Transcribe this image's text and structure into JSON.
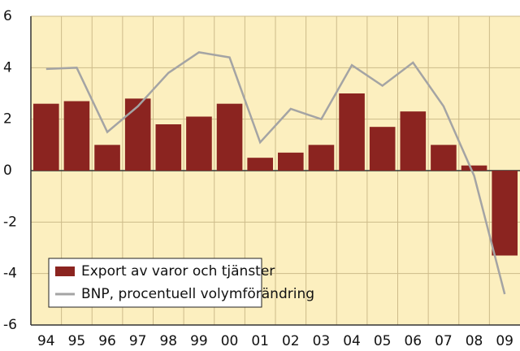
{
  "chart_data": {
    "type": "bar",
    "categories": [
      "94",
      "95",
      "96",
      "97",
      "98",
      "99",
      "00",
      "01",
      "02",
      "03",
      "04",
      "05",
      "06",
      "07",
      "08",
      "09"
    ],
    "series": [
      {
        "name": "Export av varor och tjänster",
        "type": "bar",
        "color": "#8b2420",
        "values": [
          2.6,
          2.7,
          1.0,
          2.8,
          1.8,
          2.1,
          2.6,
          0.5,
          0.7,
          1.0,
          3.0,
          1.7,
          2.3,
          1.0,
          0.2,
          -3.3
        ]
      },
      {
        "name": "BNP, procentuell volymförändring",
        "type": "line",
        "color": "#a4a4a4",
        "values": [
          3.95,
          4.0,
          1.5,
          2.5,
          3.8,
          4.6,
          4.4,
          1.1,
          2.4,
          2.0,
          4.1,
          3.3,
          4.2,
          2.5,
          -0.2,
          -4.8
        ]
      }
    ],
    "ylim": [
      -6,
      6
    ],
    "yticks": [
      -6,
      -4,
      -2,
      0,
      2,
      4,
      6
    ],
    "grid": true,
    "legend": "lower left",
    "background": "#fcefbf"
  }
}
